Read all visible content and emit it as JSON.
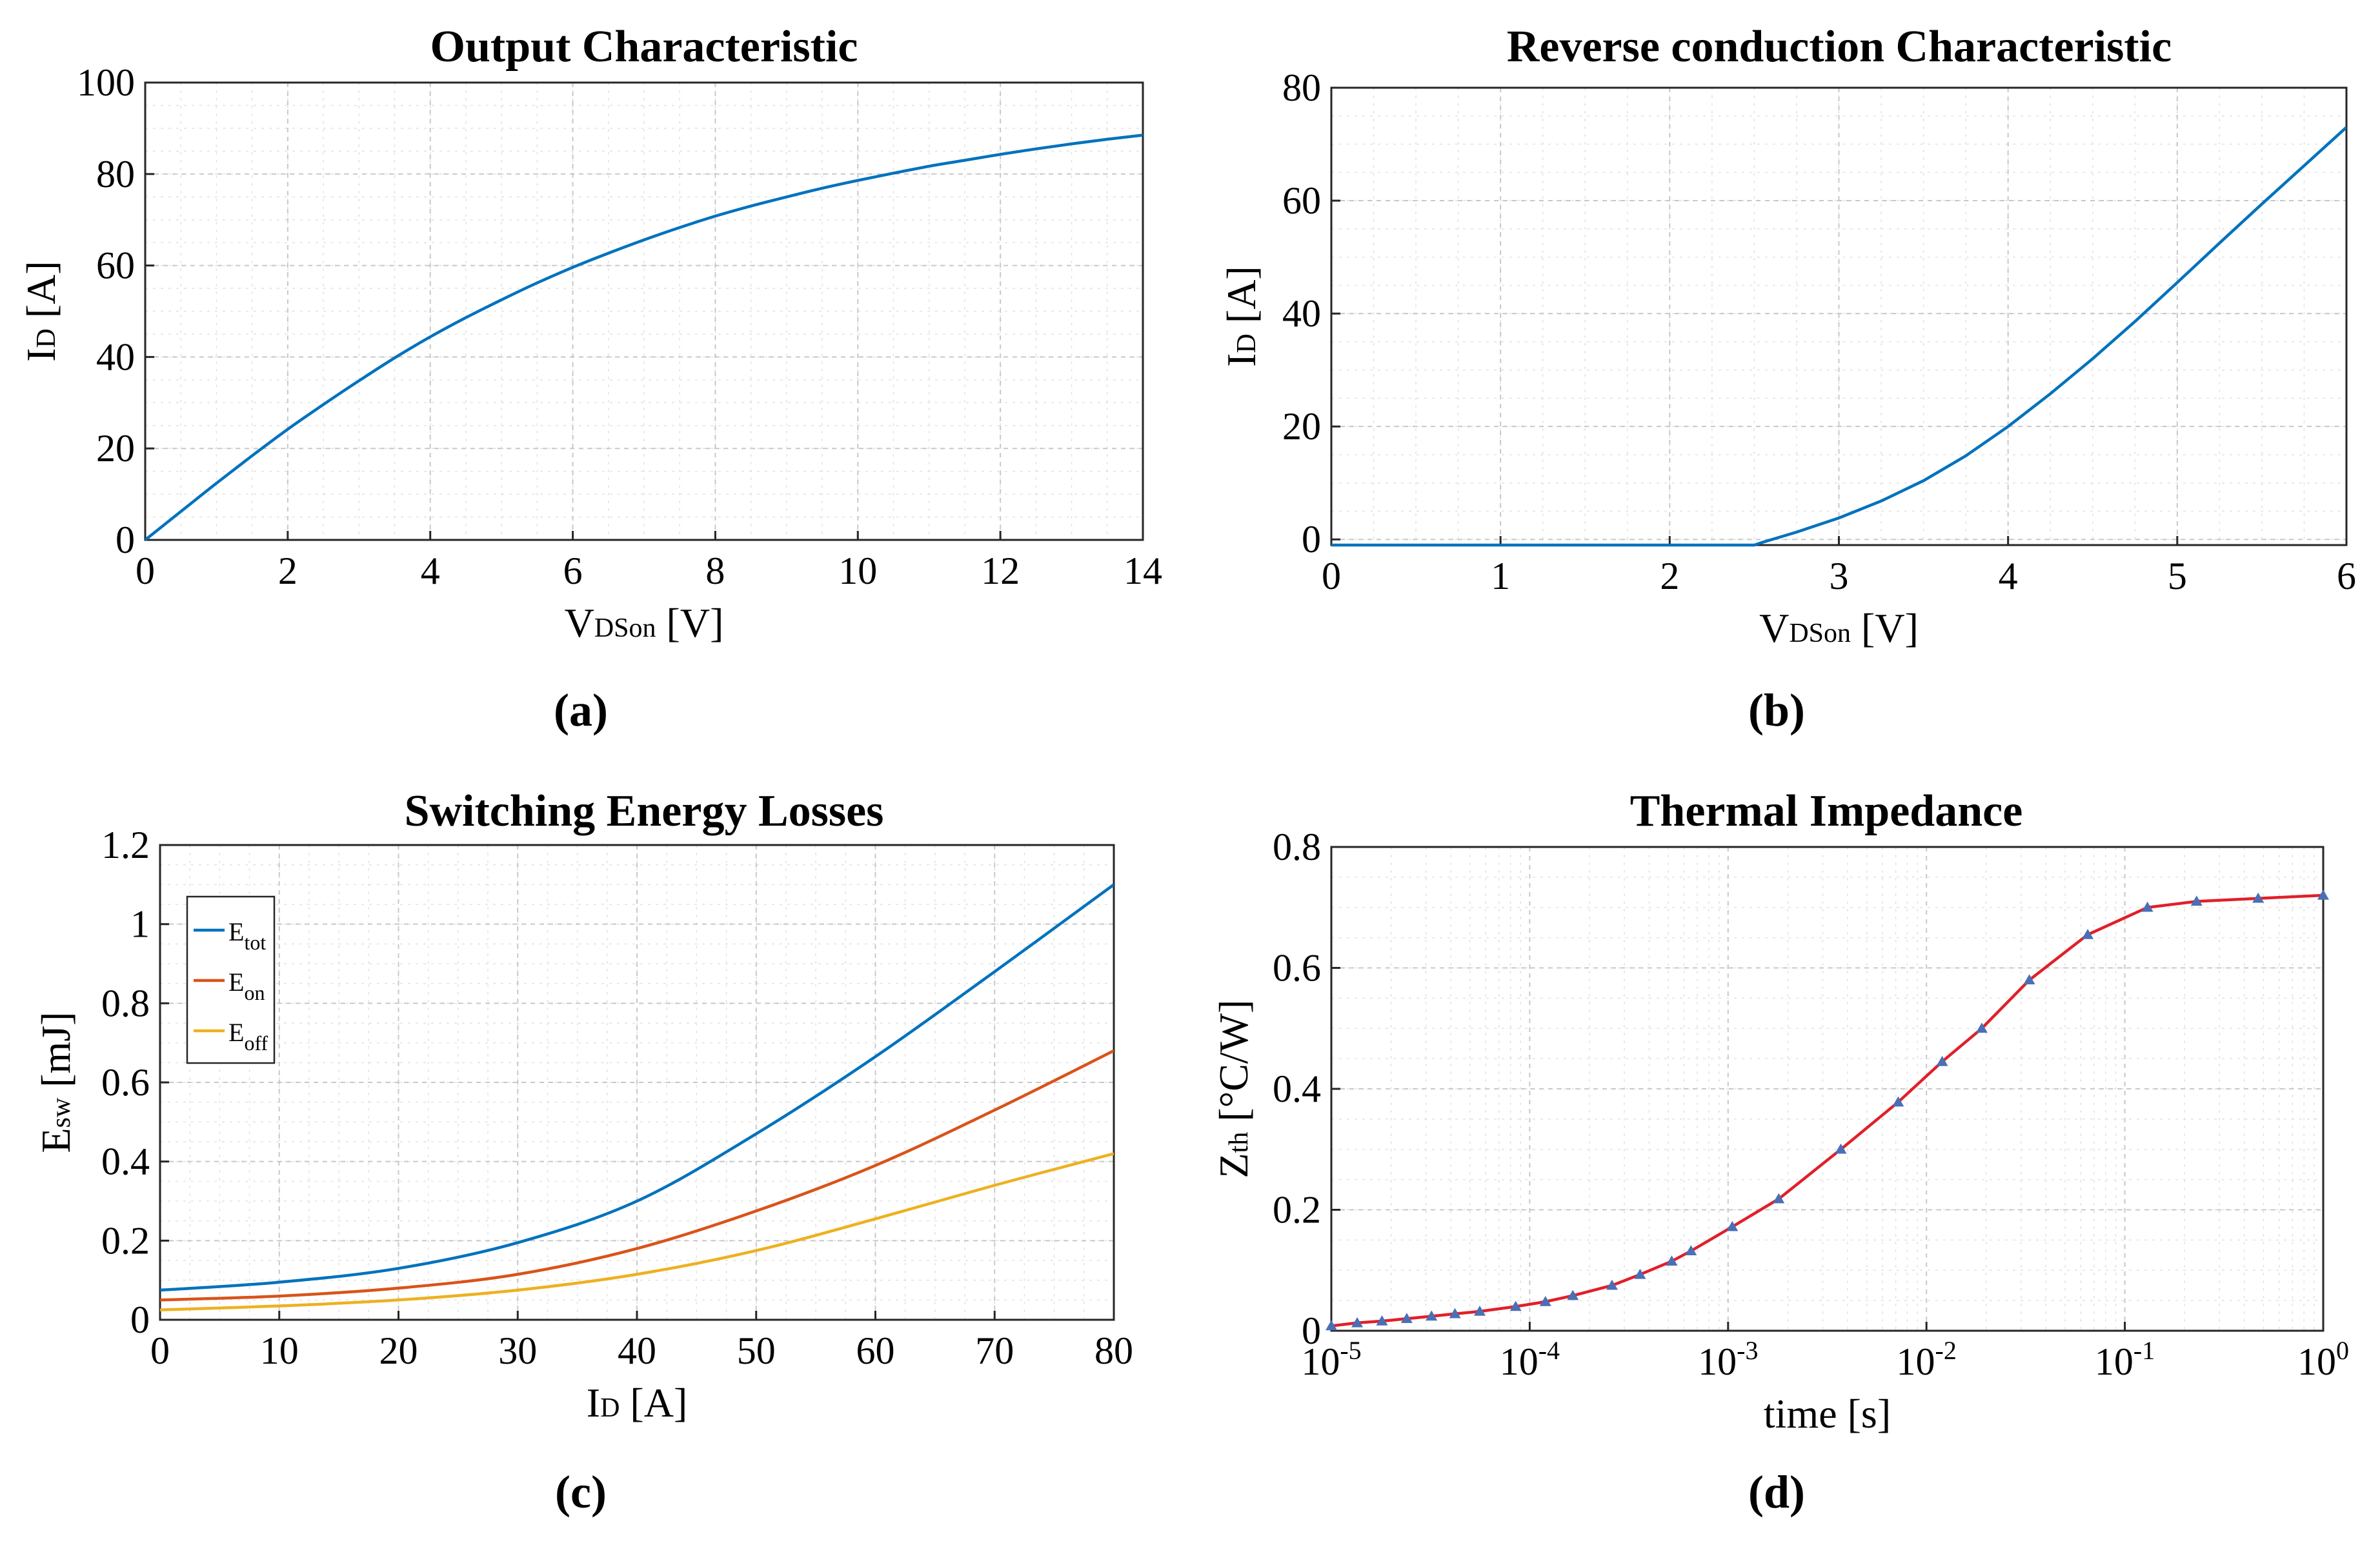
{
  "figure": {
    "panel_captions": [
      "(a)",
      "(b)",
      "(c)",
      "(d)"
    ]
  },
  "colors": {
    "blue": "#0072BD",
    "orange": "#D95319",
    "yellow": "#EDB120",
    "red": "#E0202A",
    "marker": "#4A6FB5"
  },
  "chart_data": [
    {
      "type": "line",
      "caption": "(a)",
      "title": "Output Characteristic",
      "xlabel": {
        "main": "V",
        "sub": "DSon",
        "unit": " [V]"
      },
      "ylabel": {
        "main": "I",
        "sub": "D",
        "unit": " [A]"
      },
      "xlim": [
        0,
        14
      ],
      "ylim": [
        0,
        100
      ],
      "xticks": [
        0,
        2,
        4,
        6,
        8,
        10,
        12,
        14
      ],
      "xtick_labels": [
        "0",
        "2",
        "4",
        "6",
        "8",
        "10",
        "12",
        "14"
      ],
      "yticks": [
        0,
        20,
        40,
        60,
        80,
        100
      ],
      "ytick_labels": [
        "0",
        "20",
        "40",
        "60",
        "80",
        "100"
      ],
      "series": [
        {
          "name": "I_D",
          "color": "#0072BD",
          "x": [
            0,
            0.5,
            1,
            1.5,
            2,
            2.5,
            3,
            3.5,
            4,
            4.5,
            5,
            5.5,
            6,
            6.5,
            7,
            7.5,
            8,
            8.5,
            9,
            9.5,
            10,
            10.5,
            11,
            11.5,
            12,
            12.5,
            13,
            13.5,
            14
          ],
          "y": [
            0,
            6.2,
            12.4,
            18.4,
            24.2,
            29.6,
            34.8,
            39.8,
            44.4,
            48.6,
            52.5,
            56.2,
            59.6,
            62.7,
            65.6,
            68.3,
            70.8,
            73.0,
            75.0,
            76.9,
            78.6,
            80.2,
            81.7,
            83.0,
            84.3,
            85.5,
            86.6,
            87.6,
            88.5
          ]
        }
      ]
    },
    {
      "type": "line",
      "caption": "(b)",
      "title": "Reverse conduction Characteristic",
      "xlabel": {
        "main": "V",
        "sub": "DSon",
        "unit": " [V]"
      },
      "ylabel": {
        "main": "I",
        "sub": "D",
        "unit": " [A]"
      },
      "xlim": [
        0,
        6
      ],
      "ylim": [
        -1,
        80
      ],
      "xticks": [
        0,
        1,
        2,
        3,
        4,
        5,
        6
      ],
      "xtick_labels": [
        "0",
        "1",
        "2",
        "3",
        "4",
        "5",
        "6"
      ],
      "yticks": [
        0,
        20,
        40,
        60,
        80
      ],
      "ytick_labels": [
        "0",
        "20",
        "40",
        "60",
        "80"
      ],
      "series": [
        {
          "name": "I_D",
          "color": "#0072BD",
          "x": [
            0,
            0.5,
            1,
            1.5,
            2,
            2.5,
            2.55,
            2.75,
            3,
            3.25,
            3.5,
            3.75,
            4,
            4.25,
            4.5,
            4.75,
            5,
            5.25,
            5.5,
            5.75,
            6
          ],
          "y": [
            -1,
            -1,
            -1,
            -1,
            -1,
            -1,
            -0.5,
            1.3,
            3.8,
            6.8,
            10.4,
            14.8,
            20.0,
            25.8,
            32.0,
            38.6,
            45.5,
            52.5,
            59.4,
            66.2,
            73.0
          ]
        }
      ]
    },
    {
      "type": "line",
      "caption": "(c)",
      "title": "Switching Energy Losses",
      "xlabel": {
        "main": "I",
        "sub": "D",
        "unit": " [A]"
      },
      "ylabel": {
        "main": "E",
        "sub": "sw",
        "unit": " [mJ]"
      },
      "xlim": [
        0,
        80
      ],
      "ylim": [
        0,
        1.2
      ],
      "xticks": [
        0,
        10,
        20,
        30,
        40,
        50,
        60,
        70,
        80
      ],
      "xtick_labels": [
        "0",
        "10",
        "20",
        "30",
        "40",
        "50",
        "60",
        "70",
        "80"
      ],
      "yticks": [
        0,
        0.2,
        0.4,
        0.6,
        0.8,
        1.0,
        1.2
      ],
      "ytick_labels": [
        "0",
        "0.2",
        "0.4",
        "0.6",
        "0.8",
        "1",
        "1.2"
      ],
      "legend": {
        "position": "top-left",
        "entries": [
          {
            "main": "E",
            "sub": "tot",
            "color": "#0072BD"
          },
          {
            "main": "E",
            "sub": "on",
            "color": "#D95319"
          },
          {
            "main": "E",
            "sub": "off",
            "color": "#EDB120"
          }
        ]
      },
      "series": [
        {
          "name": "E_tot",
          "color": "#0072BD",
          "x": [
            0,
            10,
            20,
            30,
            40,
            50,
            60,
            70,
            80
          ],
          "y": [
            0.075,
            0.095,
            0.13,
            0.195,
            0.3,
            0.47,
            0.665,
            0.88,
            1.1
          ]
        },
        {
          "name": "E_on",
          "color": "#D95319",
          "x": [
            0,
            10,
            20,
            30,
            40,
            50,
            60,
            70,
            80
          ],
          "y": [
            0.05,
            0.06,
            0.08,
            0.115,
            0.18,
            0.275,
            0.39,
            0.53,
            0.68
          ]
        },
        {
          "name": "E_off",
          "color": "#EDB120",
          "x": [
            0,
            10,
            20,
            30,
            40,
            50,
            60,
            70,
            80
          ],
          "y": [
            0.025,
            0.035,
            0.05,
            0.075,
            0.115,
            0.175,
            0.255,
            0.34,
            0.42
          ]
        }
      ]
    },
    {
      "type": "line",
      "caption": "(d)",
      "title": "Thermal Impedance",
      "xlabel": {
        "main": "time [s]",
        "sub": "",
        "unit": ""
      },
      "ylabel": {
        "main": "Z",
        "sub": "th",
        "unit": " [°C/W]"
      },
      "xscale": "log",
      "xlim": [
        1e-05,
        1
      ],
      "ylim": [
        0,
        0.8
      ],
      "xticks": [
        1e-05,
        0.0001,
        0.001,
        0.01,
        0.1,
        1
      ],
      "xtick_labels": [
        {
          "base": "10",
          "exp": "-5"
        },
        {
          "base": "10",
          "exp": "-4"
        },
        {
          "base": "10",
          "exp": "-3"
        },
        {
          "base": "10",
          "exp": "-2"
        },
        {
          "base": "10",
          "exp": "-1"
        },
        {
          "base": "10",
          "exp": "0"
        }
      ],
      "yticks": [
        0,
        0.2,
        0.4,
        0.6,
        0.8
      ],
      "ytick_labels": [
        "0",
        "0.2",
        "0.4",
        "0.6",
        "0.8"
      ],
      "series": [
        {
          "name": "Z_th",
          "color": "#E0202A",
          "marker": "triangle",
          "marker_color": "#4A6FB5",
          "x": [
            1e-05,
            1.35e-05,
            1.8e-05,
            2.4e-05,
            3.2e-05,
            4.2e-05,
            5.6e-05,
            8.5e-05,
            0.00012,
            0.000165,
            0.00026,
            0.00036,
            0.00052,
            0.00065,
            0.00105,
            0.0018,
            0.0037,
            0.0072,
            0.012,
            0.019,
            0.033,
            0.065,
            0.13,
            0.23,
            0.47,
            1.0
          ],
          "y": [
            0.008,
            0.013,
            0.016,
            0.02,
            0.024,
            0.028,
            0.032,
            0.04,
            0.048,
            0.058,
            0.075,
            0.093,
            0.115,
            0.132,
            0.172,
            0.218,
            0.3,
            0.378,
            0.445,
            0.5,
            0.58,
            0.655,
            0.7,
            0.71,
            0.715,
            0.72
          ]
        }
      ]
    }
  ]
}
